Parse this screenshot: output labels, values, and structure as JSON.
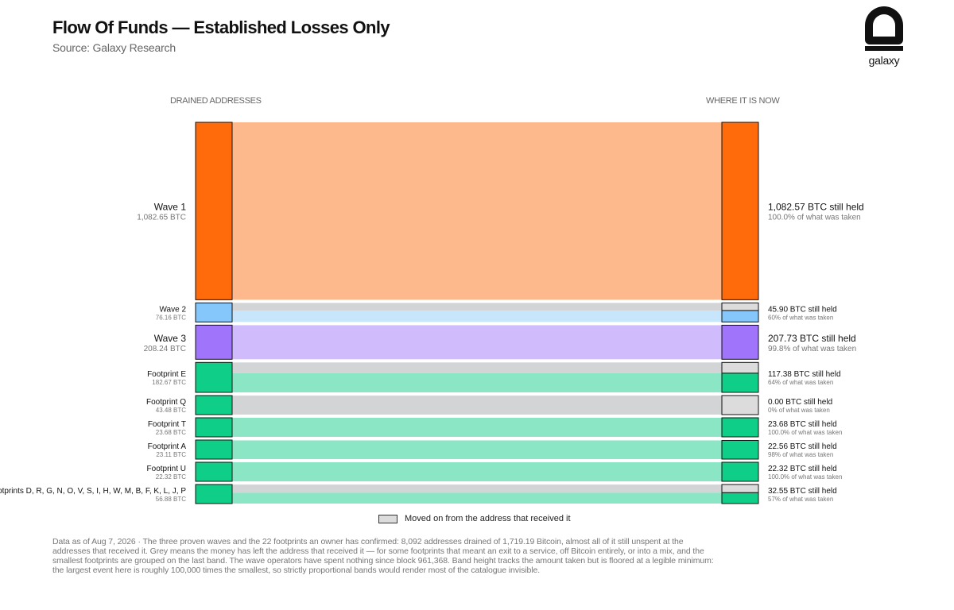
{
  "header": {
    "title": "Flow Of Funds — Established Losses Only",
    "subtitle": "Source: Galaxy Research"
  },
  "logo": {
    "text": "galaxy"
  },
  "columns": {
    "left": "DRAINED ADDRESSES",
    "right": "WHERE IT IS NOW"
  },
  "chart_data": {
    "type": "sankey",
    "rows": [
      {
        "name": "Wave 1",
        "amount": "1,082.65 BTC",
        "held_label": "1,082.57 BTC still held",
        "share_label": "100.0% of what was taken",
        "held_fraction": 1.0,
        "color": "#ff6b0a",
        "light": "#fdb98b"
      },
      {
        "name": "Wave 2",
        "amount": "76.16 BTC",
        "held_label": "45.90 BTC still held",
        "share_label": "60% of what was taken",
        "held_fraction": 0.6,
        "color": "#85c7fa",
        "light": "#c8e6fb"
      },
      {
        "name": "Wave 3",
        "amount": "208.24 BTC",
        "held_label": "207.73 BTC still held",
        "share_label": "99.8% of what was taken",
        "held_fraction": 0.998,
        "color": "#a074fb",
        "light": "#d0bcfc"
      },
      {
        "name": "Footprint E",
        "amount": "182.67 BTC",
        "held_label": "117.38 BTC still held",
        "share_label": "64% of what was taken",
        "held_fraction": 0.64,
        "color": "#0fce88",
        "light": "#8be6c6"
      },
      {
        "name": "Footprint Q",
        "amount": "43.48 BTC",
        "held_label": "0.00 BTC still held",
        "share_label": "0% of what was taken",
        "held_fraction": 0.0,
        "color": "#0fce88",
        "light": "#8be6c6"
      },
      {
        "name": "Footprint T",
        "amount": "23.68 BTC",
        "held_label": "23.68 BTC still held",
        "share_label": "100.0% of what was taken",
        "held_fraction": 1.0,
        "color": "#0fce88",
        "light": "#8be6c6"
      },
      {
        "name": "Footprint A",
        "amount": "23.11 BTC",
        "held_label": "22.56 BTC still held",
        "share_label": "98% of what was taken",
        "held_fraction": 0.98,
        "color": "#0fce88",
        "light": "#8be6c6"
      },
      {
        "name": "Footprint U",
        "amount": "22.32 BTC",
        "held_label": "22.32 BTC still held",
        "share_label": "100.0% of what was taken",
        "held_fraction": 1.0,
        "color": "#0fce88",
        "light": "#8be6c6"
      },
      {
        "name": "Footprints D, R, G, N, O, V, S, I, H, W, M, B, F, K, L, J, P",
        "amount": "56.88 BTC",
        "held_label": "32.55 BTC still held",
        "share_label": "57% of what was taken",
        "held_fraction": 0.57,
        "color": "#0fce88",
        "light": "#8be6c6"
      }
    ],
    "moved_color": "#dcdcdc",
    "moved_light": "#d3d4d6"
  },
  "legend": {
    "moved_label": "Moved on from the address that received it"
  },
  "footnote": "Data as of Aug 7, 2026 · The three proven waves and the 22 footprints an owner has confirmed: 8,092 addresses drained of 1,719.19 Bitcoin, almost all of it still unspent at the addresses that received it. Grey means the money has left the address that received it — for some footprints that meant an exit to a service, off Bitcoin entirely, or into a mix, and the smallest footprints are grouped on the last band. The wave operators have spent nothing since block 961,368. Band height tracks the amount taken but is floored at a legible minimum: the largest event here is roughly 100,000 times the smallest, so strictly proportional bands would render most of the catalogue invisible."
}
